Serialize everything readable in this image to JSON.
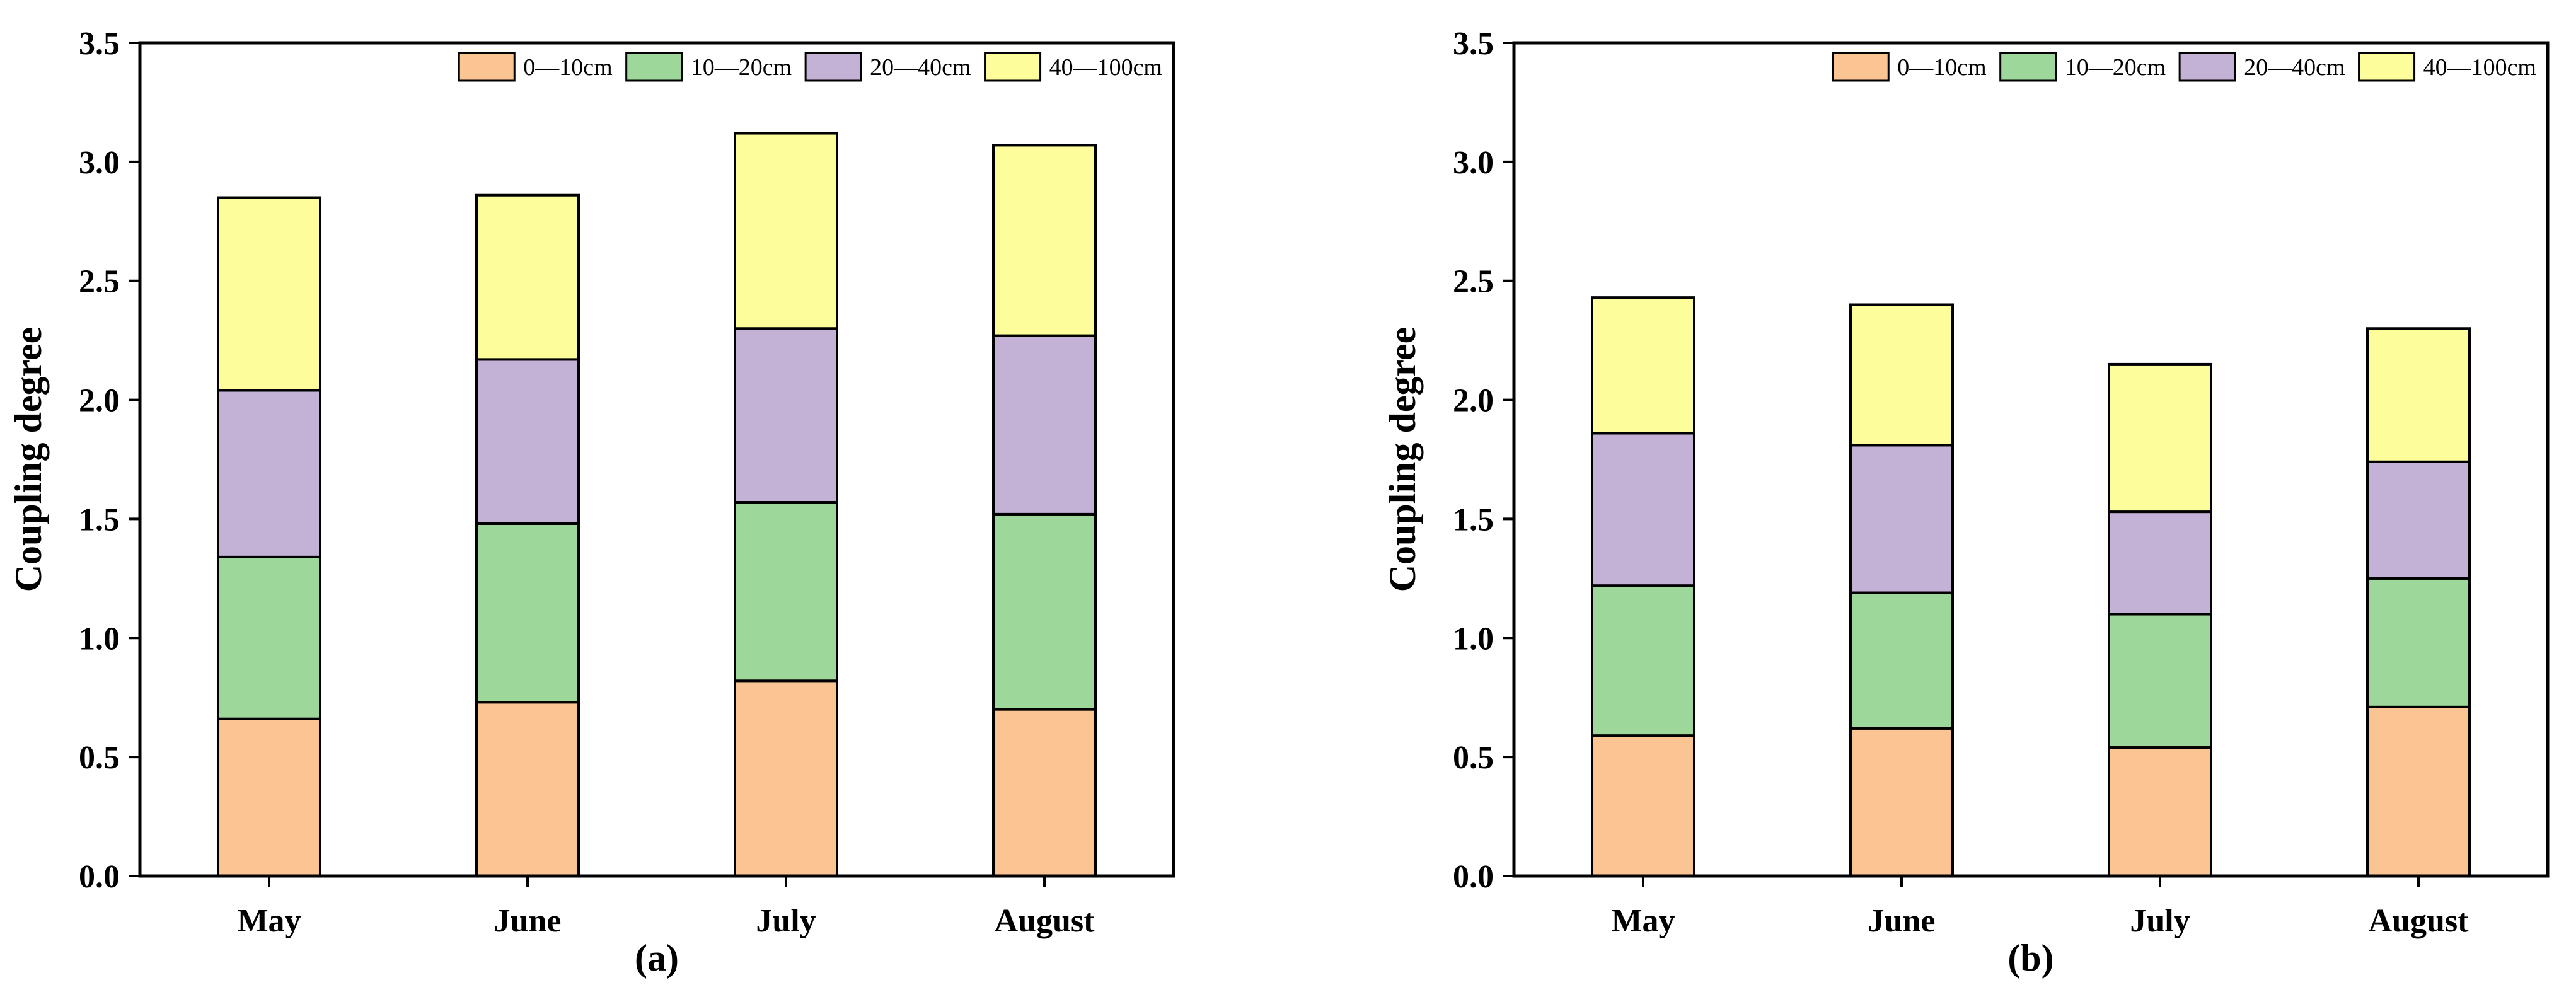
{
  "chart_data": [
    {
      "type": "bar",
      "stacked": true,
      "panel_label": "(a)",
      "ylabel": "Coupling degree",
      "xlabel": "",
      "ylim": [
        0,
        3.5
      ],
      "yticks": [
        "0.0",
        "0.5",
        "1.0",
        "1.5",
        "2.0",
        "2.5",
        "3.0",
        "3.5"
      ],
      "categories": [
        "May",
        "June",
        "July",
        "August"
      ],
      "legend_position": "top-right",
      "series": [
        {
          "name": "0—10cm",
          "color": "#FBC493",
          "values": [
            0.66,
            0.73,
            0.82,
            0.7
          ]
        },
        {
          "name": "10—20cm",
          "color": "#9DD89A",
          "values": [
            0.68,
            0.75,
            0.75,
            0.82
          ]
        },
        {
          "name": "20—40cm",
          "color": "#C3B2D6",
          "values": [
            0.7,
            0.69,
            0.73,
            0.75
          ]
        },
        {
          "name": "40—100cm",
          "color": "#FDFD9C",
          "values": [
            0.81,
            0.69,
            0.82,
            0.8
          ]
        }
      ]
    },
    {
      "type": "bar",
      "stacked": true,
      "panel_label": "(b)",
      "ylabel": "Coupling degree",
      "xlabel": "",
      "ylim": [
        0,
        3.5
      ],
      "yticks": [
        "0.0",
        "0.5",
        "1.0",
        "1.5",
        "2.0",
        "2.5",
        "3.0",
        "3.5"
      ],
      "categories": [
        "May",
        "June",
        "July",
        "August"
      ],
      "legend_position": "top-right",
      "series": [
        {
          "name": "0—10cm",
          "color": "#FBC493",
          "values": [
            0.59,
            0.62,
            0.54,
            0.71
          ]
        },
        {
          "name": "10—20cm",
          "color": "#9DD89A",
          "values": [
            0.63,
            0.57,
            0.56,
            0.54
          ]
        },
        {
          "name": "20—40cm",
          "color": "#C3B2D6",
          "values": [
            0.64,
            0.62,
            0.43,
            0.49
          ]
        },
        {
          "name": "40—100cm",
          "color": "#FDFD9C",
          "values": [
            0.57,
            0.59,
            0.62,
            0.56
          ]
        }
      ]
    }
  ]
}
